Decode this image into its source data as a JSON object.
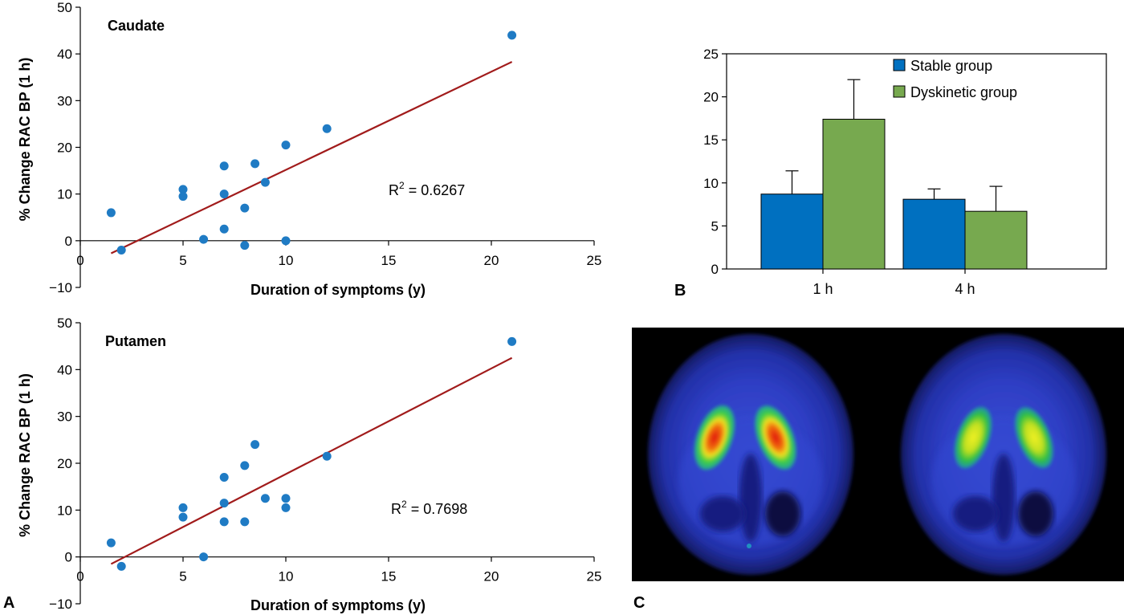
{
  "panel_labels": {
    "a": "A",
    "b": "B",
    "c": "C"
  },
  "colors": {
    "point": "#1f7bc4",
    "fit_line": "#a11b1b",
    "stable": "#0070c0",
    "dyskinetic": "#77a94f",
    "pet_background": "#000000"
  },
  "chart_data": [
    {
      "type": "scatter",
      "panel": "A",
      "title": "Caudate",
      "xlabel": "Duration of symptoms (y)",
      "ylabel": "% Change RAC BP (1 h)",
      "xlim": [
        0,
        25
      ],
      "ylim": [
        -10,
        50
      ],
      "xticks": [
        "0",
        "5",
        "10",
        "15",
        "20",
        "25"
      ],
      "yticks": [
        "−10",
        "0",
        "10",
        "20",
        "30",
        "40",
        "50"
      ],
      "points": [
        [
          1.5,
          6
        ],
        [
          2,
          -2
        ],
        [
          5,
          11
        ],
        [
          5,
          9.5
        ],
        [
          6,
          0.3
        ],
        [
          7,
          16
        ],
        [
          7,
          10
        ],
        [
          7,
          2.5
        ],
        [
          8,
          7
        ],
        [
          8,
          -1
        ],
        [
          8.5,
          16.5
        ],
        [
          9,
          12.5
        ],
        [
          10,
          20.5
        ],
        [
          10,
          0
        ],
        [
          12,
          24
        ],
        [
          21,
          44
        ]
      ],
      "fit_line": {
        "x": [
          1.5,
          21
        ],
        "y": [
          -2.7,
          38.3
        ]
      },
      "r2_prefix": "R",
      "r2_sup": "2",
      "r2_text": " = 0.6267"
    },
    {
      "type": "scatter",
      "panel": "A",
      "title": "Putamen",
      "xlabel": "Duration of symptoms (y)",
      "ylabel": "% Change RAC BP (1 h)",
      "xlim": [
        0,
        25
      ],
      "ylim": [
        -10,
        50
      ],
      "xticks": [
        "0",
        "5",
        "10",
        "15",
        "20",
        "25"
      ],
      "yticks": [
        "−10",
        "0",
        "10",
        "20",
        "30",
        "40",
        "50"
      ],
      "points": [
        [
          1.5,
          3
        ],
        [
          2,
          -2
        ],
        [
          5,
          10.5
        ],
        [
          5,
          8.5
        ],
        [
          6,
          0
        ],
        [
          7,
          17
        ],
        [
          7,
          11.5
        ],
        [
          7,
          7.5
        ],
        [
          8,
          19.5
        ],
        [
          8,
          7.5
        ],
        [
          8.5,
          24
        ],
        [
          9,
          12.5
        ],
        [
          10,
          12.5
        ],
        [
          10,
          10.5
        ],
        [
          12,
          21.5
        ],
        [
          21,
          46
        ]
      ],
      "fit_line": {
        "x": [
          1.5,
          21
        ],
        "y": [
          -1.5,
          42.5
        ]
      },
      "r2_prefix": "R",
      "r2_sup": "2",
      "r2_text": " = 0.7698"
    },
    {
      "type": "bar",
      "panel": "B",
      "categories": [
        "1 h",
        "4 h"
      ],
      "series": [
        {
          "name": "Stable group",
          "values": [
            8.7,
            8.1
          ],
          "errors": [
            2.7,
            1.2
          ]
        },
        {
          "name": "Dyskinetic group",
          "values": [
            17.4,
            6.7
          ],
          "errors": [
            4.6,
            2.9
          ]
        }
      ],
      "ylim": [
        0,
        25
      ],
      "yticks": [
        "0",
        "5",
        "10",
        "15",
        "20",
        "25"
      ],
      "legend_position": "top-right"
    }
  ]
}
